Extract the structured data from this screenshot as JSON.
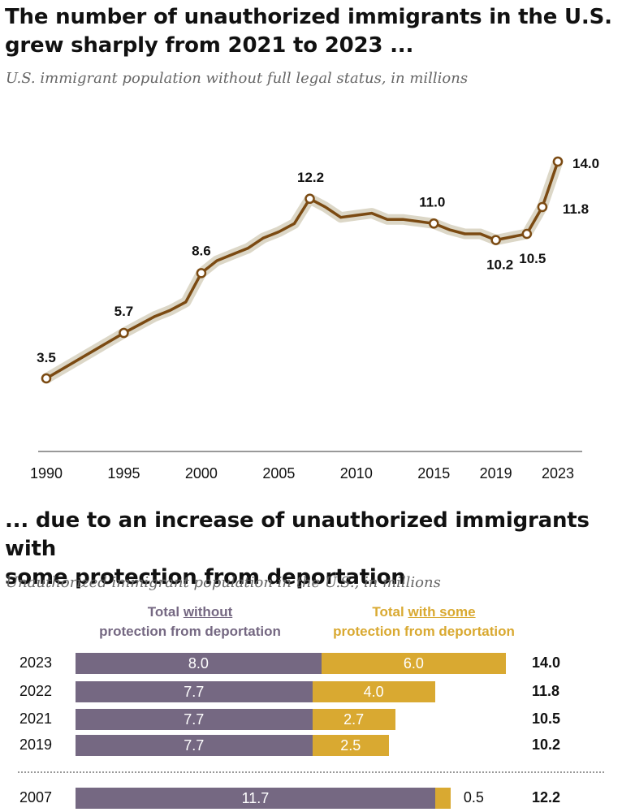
{
  "top_chart": {
    "title_line1": "The number of unauthorized immigrants in the U.S.",
    "title_line2": "grew sharply from 2021 to 2023 ...",
    "subtitle": "U.S. immigrant population without full legal status, in millions"
  },
  "bottom_chart": {
    "title_line1": "... due to an increase of unauthorized immigrants with",
    "title_line2": "some protection from deportation",
    "subtitle": "Unauthorized immigrant population in the U.S., in millions",
    "legend_without_pre": "Total ",
    "legend_without_u": "without",
    "legend_without_line2": "protection from deportation",
    "legend_with_pre": "Total ",
    "legend_with_u": "with some",
    "legend_with_line2": "protection from deportation"
  },
  "colors": {
    "line": "#7b4a12",
    "band": "#d6d0bd",
    "without": "#756882",
    "with_some": "#d9a931",
    "axis": "#999999"
  },
  "chart_data": [
    {
      "type": "line",
      "title": "The number of unauthorized immigrants in the U.S. grew sharply from 2021 to 2023 ...",
      "subtitle": "U.S. immigrant population without full legal status, in millions",
      "x": [
        1990,
        1995,
        1996,
        1997,
        1998,
        1999,
        2000,
        2001,
        2002,
        2003,
        2004,
        2005,
        2006,
        2007,
        2008,
        2009,
        2010,
        2011,
        2012,
        2013,
        2014,
        2015,
        2016,
        2017,
        2018,
        2019,
        2021,
        2022,
        2023
      ],
      "y": [
        3.5,
        5.7,
        6.1,
        6.5,
        6.8,
        7.2,
        8.6,
        9.2,
        9.5,
        9.8,
        10.3,
        10.6,
        11.0,
        12.2,
        11.8,
        11.3,
        11.4,
        11.5,
        11.2,
        11.2,
        11.1,
        11.0,
        10.7,
        10.5,
        10.5,
        10.2,
        10.5,
        11.8,
        14.0
      ],
      "labeled_points": [
        {
          "x": 1990,
          "label": "3.5"
        },
        {
          "x": 1995,
          "label": "5.7"
        },
        {
          "x": 2000,
          "label": "8.6"
        },
        {
          "x": 2007,
          "label": "12.2"
        },
        {
          "x": 2015,
          "label": "11.0"
        },
        {
          "x": 2019,
          "label": "10.2"
        },
        {
          "x": 2021,
          "label": "10.5"
        },
        {
          "x": 2022,
          "label": "11.8"
        },
        {
          "x": 2023,
          "label": "14.0"
        }
      ],
      "xticks": [
        "1990",
        "1995",
        "2000",
        "2005",
        "2010",
        "2015",
        "2019",
        "2023"
      ],
      "xtick_values": [
        1990,
        1995,
        2000,
        2005,
        2010,
        2015,
        2019,
        2023
      ],
      "xlim": [
        1989.5,
        2023.5
      ],
      "ylim": [
        0,
        15
      ],
      "xlabel": "",
      "ylabel": ""
    },
    {
      "type": "bar",
      "orientation": "horizontal",
      "stacked": true,
      "title": "... due to an increase of unauthorized immigrants with some protection from deportation",
      "subtitle": "Unauthorized immigrant population in the U.S., in millions",
      "categories": [
        "2023",
        "2022",
        "2021",
        "2019",
        "2007"
      ],
      "series": [
        {
          "name": "Total without protection from deportation",
          "values": [
            8.0,
            7.7,
            7.7,
            7.7,
            11.7
          ],
          "labels": [
            "8.0",
            "7.7",
            "7.7",
            "7.7",
            "11.7"
          ]
        },
        {
          "name": "Total with some protection from deportation",
          "values": [
            6.0,
            4.0,
            2.7,
            2.5,
            0.5
          ],
          "labels": [
            "6.0",
            "4.0",
            "2.7",
            "2.5",
            "0.5"
          ]
        }
      ],
      "totals": [
        "14.0",
        "11.8",
        "10.5",
        "10.2",
        "12.2"
      ],
      "xlim": [
        0,
        14.0
      ]
    }
  ]
}
